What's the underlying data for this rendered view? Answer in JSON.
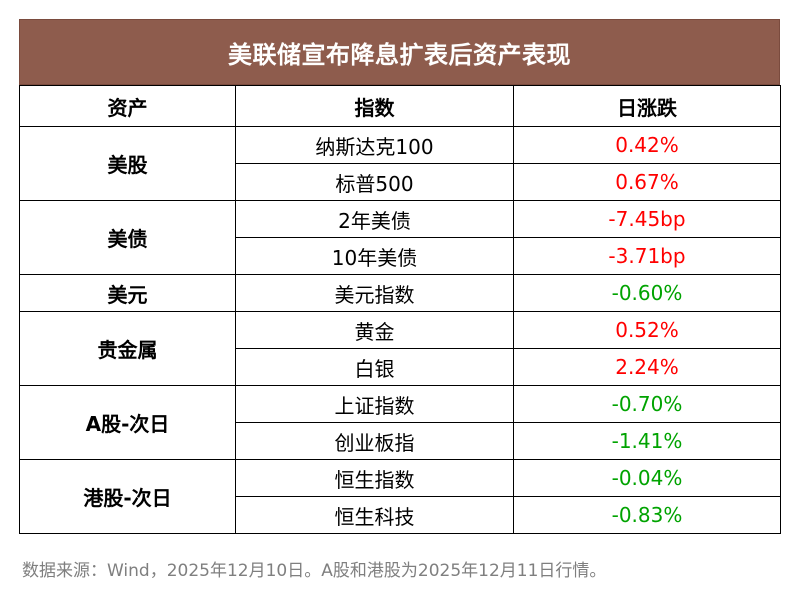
{
  "title": "美联储宣布降息扩表后资产表现",
  "headers": {
    "asset": "资产",
    "index": "指数",
    "change": "日涨跌"
  },
  "groups": [
    {
      "asset": "美股",
      "rows": [
        {
          "index": "纳斯达克100",
          "change": "0.42%",
          "color": "#ff0000"
        },
        {
          "index": "标普500",
          "change": "0.67%",
          "color": "#ff0000"
        }
      ]
    },
    {
      "asset": "美债",
      "rows": [
        {
          "index": "2年美债",
          "change": "-7.45bp",
          "color": "#ff0000"
        },
        {
          "index": "10年美债",
          "change": "-3.71bp",
          "color": "#ff0000"
        }
      ]
    },
    {
      "asset": "美元",
      "rows": [
        {
          "index": "美元指数",
          "change": "-0.60%",
          "color": "#00a300"
        }
      ]
    },
    {
      "asset": "贵金属",
      "rows": [
        {
          "index": "黄金",
          "change": "0.52%",
          "color": "#ff0000"
        },
        {
          "index": "白银",
          "change": "2.24%",
          "color": "#ff0000"
        }
      ]
    },
    {
      "asset": "A股-次日",
      "rows": [
        {
          "index": "上证指数",
          "change": "-0.70%",
          "color": "#00a300"
        },
        {
          "index": "创业板指",
          "change": "-1.41%",
          "color": "#00a300"
        }
      ]
    },
    {
      "asset": "港股-次日",
      "rows": [
        {
          "index": "恒生指数",
          "change": "-0.04%",
          "color": "#00a300"
        },
        {
          "index": "恒生科技",
          "change": "-0.83%",
          "color": "#00a300"
        }
      ]
    }
  ],
  "source": "数据来源：Wind，2025年12月10日。A股和港股为2025年12月11日行情。",
  "colors": {
    "title_bg": "#8e5c4d",
    "up": "#ff0000",
    "down": "#00a300"
  }
}
